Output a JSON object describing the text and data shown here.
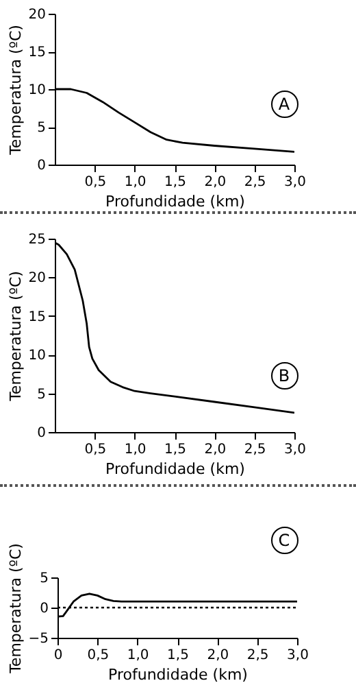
{
  "chart_data": [
    {
      "type": "line",
      "xlabel": "Profundidade (km)",
      "ylabel": "Temperatura (ºC)",
      "annotations": [
        "A"
      ],
      "grid": false,
      "marker": "none",
      "line_style": "solid",
      "xlim": [
        0,
        3
      ],
      "ylim": [
        0,
        20
      ],
      "yticks": [
        0,
        5,
        10,
        15,
        20
      ],
      "xticks": [
        {
          "value": 0.5,
          "label": "0,5"
        },
        {
          "value": 1,
          "label": "1,0"
        },
        {
          "value": 1.5,
          "label": "1,5"
        },
        {
          "value": 2,
          "label": "2,0"
        },
        {
          "value": 2.5,
          "label": "2,5"
        },
        {
          "value": 3,
          "label": "3,0"
        }
      ],
      "x": [
        0,
        0.2,
        0.4,
        0.6,
        0.8,
        1.0,
        1.2,
        1.4,
        1.6,
        2.0,
        2.5,
        3.0
      ],
      "series": [
        {
          "color": "#000000",
          "values": [
            10,
            10,
            9.5,
            8.3,
            6.9,
            5.6,
            4.3,
            3.3,
            2.9,
            2.5,
            2.1,
            1.7
          ]
        }
      ]
    },
    {
      "type": "line",
      "xlabel": "Profundidade (km)",
      "ylabel": "Temperatura (ºC)",
      "annotations": [
        "B"
      ],
      "grid": false,
      "marker": "none",
      "line_style": "solid",
      "xlim": [
        0,
        3
      ],
      "ylim": [
        0,
        25
      ],
      "yticks": [
        0,
        5,
        10,
        15,
        20,
        25
      ],
      "xticks": [
        {
          "value": 0.5,
          "label": "0,5"
        },
        {
          "value": 1,
          "label": "1,0"
        },
        {
          "value": 1.5,
          "label": "1,5"
        },
        {
          "value": 2,
          "label": "2,0"
        },
        {
          "value": 2.5,
          "label": "2,5"
        },
        {
          "value": 3,
          "label": "3,0"
        }
      ],
      "x": [
        0,
        0.05,
        0.15,
        0.25,
        0.35,
        0.4,
        0.43,
        0.47,
        0.55,
        0.7,
        0.85,
        1.0,
        1.2,
        1.5,
        2.0,
        2.5,
        3.0
      ],
      "series": [
        {
          "color": "#000000",
          "values": [
            24.5,
            24.2,
            23,
            21,
            17,
            14,
            11,
            9.5,
            8,
            6.5,
            5.8,
            5.3,
            5,
            4.6,
            3.9,
            3.2,
            2.5
          ]
        }
      ]
    },
    {
      "type": "line",
      "xlabel": "Profundidade (km)",
      "ylabel": "Temperatura (ºC)",
      "annotations": [
        "C"
      ],
      "grid": false,
      "marker": "none",
      "line_style": "solid",
      "xlim": [
        0,
        3
      ],
      "ylim": [
        -5,
        5
      ],
      "yticks": [
        -5,
        0,
        5
      ],
      "xticks": [
        0,
        {
          "value": 0.5,
          "label": "0,5"
        },
        {
          "value": 1,
          "label": "1,0"
        },
        {
          "value": 1.5,
          "label": "1,5"
        },
        {
          "value": 2,
          "label": "2,0"
        },
        {
          "value": 2.5,
          "label": "2,5"
        },
        {
          "value": 3,
          "label": "3,0"
        }
      ],
      "ref_lines": [
        {
          "axis": "y",
          "value": 0,
          "line_style": "dotted",
          "color": "#000000"
        }
      ],
      "x": [
        0,
        0.07,
        0.12,
        0.2,
        0.3,
        0.4,
        0.5,
        0.6,
        0.7,
        0.8,
        3.0
      ],
      "series": [
        {
          "color": "#000000",
          "values": [
            -1.5,
            -1.4,
            -0.5,
            1,
            2,
            2.3,
            2,
            1.4,
            1.1,
            1,
            1
          ]
        }
      ]
    }
  ]
}
